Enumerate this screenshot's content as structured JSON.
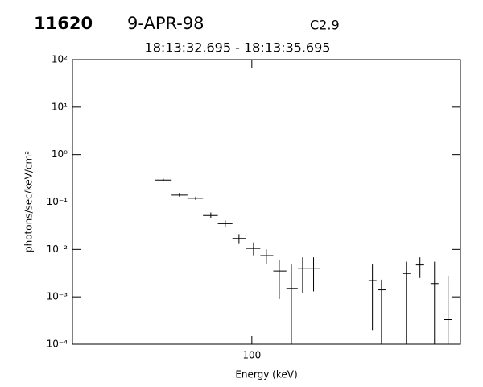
{
  "chart_data": {
    "type": "errorbar",
    "title": "11620",
    "date": "9-APR-98",
    "class": "C2.9",
    "subtitle": "18:13:32.695 - 18:13:35.695",
    "xlabel": "Energy (keV)",
    "ylabel": "photons/sec/keV/cm²",
    "xscale": "log",
    "yscale": "log",
    "xlim": [
      20,
      650
    ],
    "ylim": [
      0.0001,
      100
    ],
    "xticks": [
      100
    ],
    "yticks": [
      {
        "value": 0.0001,
        "label": "10⁻⁴"
      },
      {
        "value": 0.001,
        "label": "10⁻³"
      },
      {
        "value": 0.01,
        "label": "10⁻²"
      },
      {
        "value": 0.1,
        "label": "10⁻¹"
      },
      {
        "value": 1,
        "label": "10⁰"
      },
      {
        "value": 10,
        "label": "10¹"
      },
      {
        "value": 100,
        "label": "10²"
      }
    ],
    "color": "#000000",
    "x": [
      45.2,
      52.2,
      60.4,
      69.2,
      78.8,
      89.1,
      101.5,
      113.9,
      127.9,
      142.6,
      157.7,
      174,
      295,
      320,
      400,
      452,
      515,
      582
    ],
    "x_low": [
      42.1,
      48.7,
      56.1,
      64.5,
      73.7,
      84.0,
      94.5,
      107.9,
      121.2,
      136.3,
      150.9,
      166.7,
      285,
      309,
      386,
      436,
      497,
      561
    ],
    "x_high": [
      48.7,
      56.1,
      64.5,
      73.7,
      84.0,
      94.5,
      107.9,
      121.2,
      136.3,
      150.9,
      166.7,
      183.9,
      306,
      332,
      415,
      469,
      534,
      603
    ],
    "values": [
      0.29,
      0.14,
      0.12,
      0.052,
      0.035,
      0.017,
      0.0105,
      0.0074,
      0.0035,
      0.0015,
      0.004,
      0.004,
      0.0022,
      0.0014,
      0.0031,
      0.0047,
      0.0019,
      0.00033
    ],
    "y_low": [
      0.27,
      0.13,
      0.11,
      0.045,
      0.029,
      0.013,
      0.0075,
      0.005,
      0.0009,
      1e-05,
      0.0012,
      0.0013,
      0.0002,
      1e-05,
      8e-05,
      0.0025,
      1e-05,
      1e-05
    ],
    "y_high": [
      0.31,
      0.15,
      0.13,
      0.06,
      0.041,
      0.021,
      0.014,
      0.01,
      0.0061,
      0.0048,
      0.0068,
      0.0068,
      0.0048,
      0.0023,
      0.0055,
      0.0068,
      0.0055,
      0.0028
    ]
  }
}
